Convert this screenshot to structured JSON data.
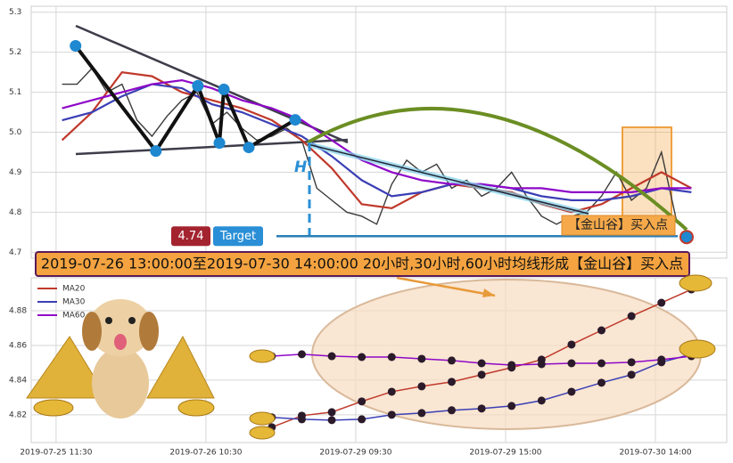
{
  "chart_data": [
    {
      "type": "line",
      "ylim": [
        4.685,
        5.315
      ],
      "yticks": [
        4.7,
        4.8,
        4.9,
        {
          "value": 5,
          "label": "5.0"
        },
        5.1,
        5.2,
        5.3
      ],
      "xlim": [
        -0.83,
        22.38
      ],
      "grid": true,
      "series": [
        {
          "color": "#3a3a3a",
          "x": [
            0.2,
            0.7,
            1.2,
            1.7,
            2.2,
            2.7,
            3.2,
            3.7,
            4.2,
            4.7,
            5.2,
            5.7,
            6.2,
            6.7,
            7.2,
            7.7,
            8.2,
            8.7,
            9.2,
            9.7,
            10.2,
            10.7,
            11.2,
            11.7,
            12.2,
            12.7,
            13.2,
            13.7,
            14.2,
            14.7,
            15.2,
            15.7,
            16.2,
            16.7,
            17.2,
            17.7,
            18.2,
            18.7,
            19.2,
            19.7,
            20.2,
            20.7,
            21.2
          ],
          "values": [
            5.12,
            5.12,
            5.16,
            5.1,
            5.12,
            5.03,
            4.99,
            5.04,
            5.08,
            5.1,
            5.02,
            5.05,
            5.01,
            4.98,
            4.99,
            5.01,
            4.98,
            4.86,
            4.83,
            4.8,
            4.79,
            4.77,
            4.87,
            4.93,
            4.9,
            4.92,
            4.86,
            4.88,
            4.84,
            4.86,
            4.9,
            4.84,
            4.79,
            4.77,
            4.79,
            4.8,
            4.84,
            4.9,
            4.83,
            4.86,
            4.95,
            4.78,
            4.74
          ]
        },
        {
          "color": "#c0392b",
          "x": [
            0.2,
            1.2,
            2.2,
            3.2,
            4.2,
            5.2,
            6.2,
            7.2,
            8.2,
            9.2,
            10.2,
            11.2,
            12.2,
            13.2,
            14.2,
            15.2,
            16.2,
            17.2,
            18.2,
            19.2,
            20.2,
            21.2
          ],
          "values": [
            4.98,
            5.05,
            5.15,
            5.14,
            5.1,
            5.08,
            5.06,
            5.03,
            4.98,
            4.91,
            4.82,
            4.81,
            4.85,
            4.87,
            4.86,
            4.85,
            4.82,
            4.8,
            4.82,
            4.86,
            4.9,
            4.86
          ]
        },
        {
          "color": "#3b3fb5",
          "x": [
            0.2,
            1.2,
            2.2,
            3.2,
            4.2,
            5.2,
            6.2,
            7.2,
            8.2,
            9.2,
            10.2,
            11.2,
            12.2,
            13.2,
            14.2,
            15.2,
            16.2,
            17.2,
            18.2,
            19.2,
            20.2,
            21.2
          ],
          "values": [
            5.03,
            5.05,
            5.09,
            5.12,
            5.11,
            5.07,
            5.05,
            5.02,
            4.99,
            4.94,
            4.88,
            4.84,
            4.85,
            4.87,
            4.87,
            4.86,
            4.84,
            4.83,
            4.83,
            4.84,
            4.86,
            4.85
          ]
        },
        {
          "color": "#8e08c8",
          "x": [
            0.2,
            1.2,
            2.2,
            3.2,
            4.2,
            5.2,
            6.2,
            7.2,
            8.2,
            9.2,
            10.2,
            11.2,
            12.2,
            13.2,
            14.2,
            15.2,
            16.2,
            17.2,
            18.2,
            19.2,
            20.2,
            21.2
          ],
          "values": [
            5.06,
            5.08,
            5.1,
            5.12,
            5.13,
            5.11,
            5.08,
            5.06,
            5.03,
            4.98,
            4.93,
            4.9,
            4.88,
            4.87,
            4.87,
            4.86,
            4.86,
            4.85,
            4.85,
            4.85,
            4.86,
            4.86
          ]
        }
      ],
      "pattern": {
        "color": "#1e88d0",
        "x": [
          0.65,
          3.33,
          4.73,
          5.45,
          5.6,
          6.43,
          7.98,
          21.04
        ],
        "values": [
          5.216,
          4.953,
          5.116,
          4.973,
          5.107,
          4.962,
          5.031,
          4.738
        ]
      },
      "target": {
        "value": 4.74,
        "label": "Target"
      },
      "h_label": "H",
      "buy_label": "【金山谷】买入点",
      "banner": "2019-07-26 13:00:00至2019-07-30 14:00:00 20小时,30小时,60小时均线形成【金山谷】买入点"
    },
    {
      "type": "line",
      "ylim": [
        4.804,
        4.899
      ],
      "yticks": [
        4.82,
        4.84,
        4.86,
        4.88
      ],
      "xlim": [
        -0.83,
        22.38
      ],
      "grid": true,
      "xticks": [
        {
          "value": 0,
          "label": "2019-07-25 11:30"
        },
        {
          "value": 5,
          "label": "2019-07-26 10:30"
        },
        {
          "value": 10,
          "label": "2019-07-29 09:30"
        },
        {
          "value": 15,
          "label": "2019-07-29 15:00"
        },
        {
          "value": 20,
          "label": "2019-07-30 14:00"
        }
      ],
      "x": [
        7.2,
        8.2,
        9.2,
        10.2,
        11.2,
        12.2,
        13.2,
        14.2,
        15.2,
        16.2,
        17.2,
        18.2,
        19.2,
        20.2,
        21.2
      ],
      "series": [
        {
          "name": "MA20",
          "color": "#c0392b",
          "values": [
            4.8128,
            4.8195,
            4.8215,
            4.8277,
            4.8333,
            4.8364,
            4.839,
            4.8431,
            4.8472,
            4.8518,
            4.8605,
            4.8687,
            4.8769,
            4.8846,
            4.8923
          ]
        },
        {
          "name": "MA30",
          "color": "#3b3fb5",
          "values": [
            4.8185,
            4.8174,
            4.8169,
            4.8174,
            4.82,
            4.821,
            4.8226,
            4.8236,
            4.8251,
            4.8282,
            4.8333,
            4.8385,
            4.8431,
            4.8503,
            4.8549
          ]
        },
        {
          "name": "MA60",
          "color": "#8e08c8",
          "values": [
            4.8538,
            4.8549,
            4.8538,
            4.8533,
            4.8533,
            4.8523,
            4.8513,
            4.8497,
            4.8487,
            4.8492,
            4.8497,
            4.8497,
            4.8503,
            4.8518,
            4.8538
          ]
        }
      ]
    }
  ]
}
